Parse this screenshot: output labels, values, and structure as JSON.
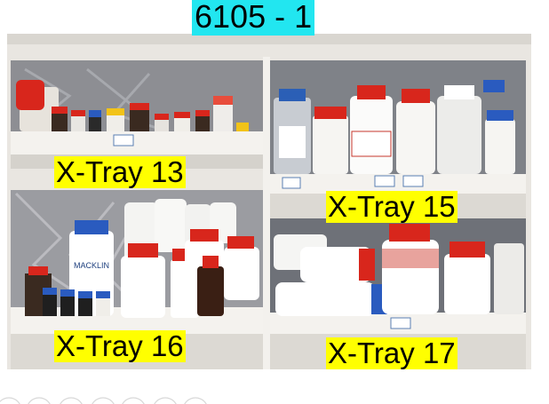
{
  "image": {
    "subject": "shelved-reagent-bottles",
    "colors": {
      "cabinet": "#e9e6e1",
      "shelf": "#f1efeb",
      "liner": "#9a9a9e",
      "cap_red": "#d8261c",
      "cap_blue": "#2a5bbf"
    }
  },
  "cabinet_label": {
    "text": "6105 - 1",
    "color": "#22e6f0"
  },
  "tray_labels": [
    {
      "text": "X-Tray 13",
      "color": "#ffff00"
    },
    {
      "text": "X-Tray 15",
      "color": "#ffff00"
    },
    {
      "text": "X-Tray 16",
      "color": "#ffff00"
    },
    {
      "text": "X-Tray 17",
      "color": "#ffff00"
    }
  ],
  "bottle_labels": {
    "brand": "MACKLIN"
  }
}
